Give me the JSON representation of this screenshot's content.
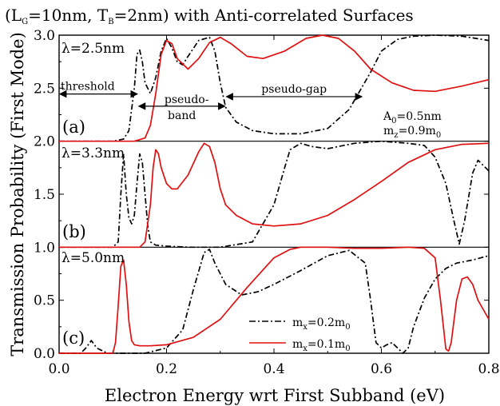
{
  "chart_data": {
    "type": "line",
    "title_parts": [
      "(L",
      "G",
      "=10nm, T",
      "B",
      "=2nm) with Anti-correlated Surfaces"
    ],
    "xlabel": "Electron Energy wrt First Subband (eV)",
    "ylabel": "Transmission Probability (First Mode)",
    "xlim": [
      0.0,
      0.8
    ],
    "xticks": [
      "0.0",
      "0.2",
      "0.4",
      "0.6",
      "0.8"
    ],
    "yticks": [
      "0.0",
      "0.5",
      "1.0",
      "1.5",
      "2.0",
      "2.5",
      "3.0"
    ],
    "legend": [
      {
        "name_parts": [
          "m",
          "x",
          "=0.2m",
          "0"
        ],
        "style": "dashdot",
        "color": "#000000"
      },
      {
        "name_parts": [
          "m",
          "x",
          "=0.1m",
          "0"
        ],
        "style": "solid",
        "color": "#e01010"
      }
    ],
    "params": {
      "a0_parts": [
        "A",
        "0",
        "=0.5nm"
      ],
      "mz_parts": [
        "m",
        "z",
        "=0.9m",
        "0"
      ]
    },
    "panels": [
      {
        "letter": "(a)",
        "lambda": "λ=2.5nm",
        "offset": 2.0,
        "series": [
          {
            "name": "dashdot",
            "x": [
              0,
              0.1,
              0.12,
              0.13,
              0.14,
              0.145,
              0.15,
              0.155,
              0.16,
              0.17,
              0.18,
              0.19,
              0.2,
              0.21,
              0.22,
              0.23,
              0.24,
              0.26,
              0.28,
              0.29,
              0.3,
              0.31,
              0.33,
              0.36,
              0.4,
              0.45,
              0.5,
              0.54,
              0.58,
              0.6,
              0.63,
              0.66,
              0.7,
              0.75,
              0.8
            ],
            "y": [
              2.0,
              2.0,
              2.02,
              2.1,
              2.5,
              2.82,
              2.86,
              2.75,
              2.55,
              2.45,
              2.6,
              2.85,
              2.97,
              2.88,
              2.75,
              2.72,
              2.8,
              2.95,
              2.98,
              2.85,
              2.55,
              2.32,
              2.18,
              2.1,
              2.07,
              2.07,
              2.12,
              2.3,
              2.65,
              2.85,
              2.96,
              2.99,
              3.0,
              2.99,
              2.95
            ]
          },
          {
            "name": "solid",
            "x": [
              0,
              0.14,
              0.16,
              0.17,
              0.18,
              0.19,
              0.2,
              0.21,
              0.22,
              0.24,
              0.26,
              0.28,
              0.3,
              0.32,
              0.35,
              0.38,
              0.42,
              0.46,
              0.49,
              0.52,
              0.55,
              0.58,
              0.62,
              0.66,
              0.7,
              0.75,
              0.8
            ],
            "y": [
              2.0,
              2.0,
              2.03,
              2.15,
              2.45,
              2.82,
              2.95,
              2.92,
              2.78,
              2.68,
              2.78,
              2.93,
              2.98,
              2.92,
              2.8,
              2.78,
              2.85,
              2.97,
              3.0,
              2.97,
              2.85,
              2.68,
              2.55,
              2.48,
              2.47,
              2.52,
              2.58
            ]
          }
        ]
      },
      {
        "letter": "(b)",
        "lambda": "λ=3.3nm",
        "offset": 1.0,
        "series": [
          {
            "name": "dashdot",
            "x": [
              0,
              0.1,
              0.11,
              0.115,
              0.12,
              0.125,
              0.13,
              0.135,
              0.14,
              0.145,
              0.15,
              0.155,
              0.16,
              0.165,
              0.17,
              0.18,
              0.2,
              0.24,
              0.3,
              0.36,
              0.4,
              0.42,
              0.43,
              0.45,
              0.47,
              0.5,
              0.55,
              0.6,
              0.65,
              0.68,
              0.7,
              0.72,
              0.735,
              0.745,
              0.755,
              0.77,
              0.78,
              0.8
            ],
            "y": [
              1.0,
              1.0,
              1.05,
              1.5,
              1.88,
              1.5,
              1.28,
              1.22,
              1.3,
              1.6,
              1.88,
              1.8,
              1.5,
              1.2,
              1.05,
              1.02,
              1.01,
              1.0,
              1.0,
              1.05,
              1.4,
              1.75,
              1.92,
              1.98,
              1.95,
              1.93,
              1.98,
              2.0,
              1.98,
              1.96,
              1.85,
              1.6,
              1.25,
              1.03,
              1.25,
              1.7,
              1.82,
              1.72
            ]
          },
          {
            "name": "solid",
            "x": [
              0,
              0.15,
              0.16,
              0.17,
              0.175,
              0.18,
              0.185,
              0.19,
              0.2,
              0.21,
              0.22,
              0.24,
              0.26,
              0.27,
              0.28,
              0.29,
              0.3,
              0.31,
              0.33,
              0.36,
              0.4,
              0.45,
              0.5,
              0.55,
              0.6,
              0.65,
              0.7,
              0.75,
              0.8
            ],
            "y": [
              1.0,
              1.0,
              1.05,
              1.4,
              1.75,
              1.92,
              1.88,
              1.75,
              1.6,
              1.55,
              1.55,
              1.68,
              1.9,
              1.98,
              1.95,
              1.8,
              1.55,
              1.4,
              1.3,
              1.22,
              1.2,
              1.22,
              1.3,
              1.45,
              1.62,
              1.8,
              1.92,
              1.97,
              1.98
            ]
          }
        ]
      },
      {
        "letter": "(c)",
        "lambda": "λ=5.0nm",
        "offset": 0.0,
        "series": [
          {
            "name": "dashdot",
            "x": [
              0,
              0.04,
              0.05,
              0.06,
              0.07,
              0.09,
              0.12,
              0.16,
              0.2,
              0.23,
              0.25,
              0.27,
              0.28,
              0.29,
              0.31,
              0.34,
              0.37,
              0.4,
              0.45,
              0.5,
              0.54,
              0.57,
              0.58,
              0.59,
              0.6,
              0.61,
              0.62,
              0.63,
              0.64,
              0.65,
              0.66,
              0.68,
              0.7,
              0.72,
              0.74,
              0.77,
              0.8
            ],
            "y": [
              0.0,
              0.0,
              0.05,
              0.12,
              0.05,
              0.0,
              0.0,
              0.0,
              0.05,
              0.22,
              0.6,
              0.95,
              0.98,
              0.85,
              0.65,
              0.55,
              0.58,
              0.65,
              0.78,
              0.92,
              0.97,
              0.85,
              0.5,
              0.1,
              0.05,
              0.08,
              0.1,
              0.05,
              0.0,
              0.05,
              0.25,
              0.52,
              0.7,
              0.8,
              0.85,
              0.88,
              0.92
            ]
          },
          {
            "name": "solid",
            "x": [
              0,
              0.1,
              0.105,
              0.11,
              0.115,
              0.12,
              0.125,
              0.13,
              0.135,
              0.14,
              0.15,
              0.17,
              0.2,
              0.25,
              0.3,
              0.35,
              0.4,
              0.43,
              0.45,
              0.5,
              0.55,
              0.6,
              0.65,
              0.68,
              0.7,
              0.71,
              0.72,
              0.725,
              0.73,
              0.74,
              0.75,
              0.76,
              0.77,
              0.78,
              0.8
            ],
            "y": [
              0.0,
              0.0,
              0.1,
              0.45,
              0.82,
              0.88,
              0.65,
              0.3,
              0.12,
              0.08,
              0.07,
              0.07,
              0.08,
              0.15,
              0.32,
              0.62,
              0.9,
              0.98,
              1.0,
              1.0,
              0.99,
              0.99,
              1.0,
              0.99,
              0.9,
              0.5,
              0.04,
              0.02,
              0.1,
              0.5,
              0.7,
              0.72,
              0.65,
              0.5,
              0.32
            ]
          }
        ]
      }
    ],
    "annotations": [
      {
        "text": "threshold",
        "x0": 0.0,
        "x1": 0.147,
        "y": 2.445
      },
      {
        "text_line1": "pseudo-",
        "text_line2": "band",
        "x0": 0.147,
        "x1": 0.31,
        "y": 2.33
      },
      {
        "text": "pseudo-gap",
        "x0": 0.31,
        "x1": 0.565,
        "y": 2.42
      }
    ]
  }
}
